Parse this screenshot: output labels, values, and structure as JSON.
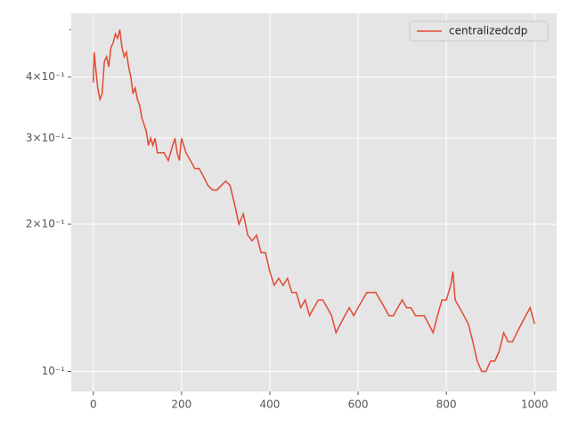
{
  "chart_data": {
    "type": "line",
    "x": [
      0,
      2,
      5,
      10,
      15,
      20,
      25,
      30,
      35,
      40,
      45,
      50,
      55,
      60,
      65,
      70,
      75,
      80,
      85,
      90,
      95,
      100,
      105,
      110,
      115,
      120,
      125,
      130,
      135,
      140,
      145,
      150,
      160,
      170,
      180,
      185,
      190,
      195,
      200,
      205,
      210,
      220,
      230,
      240,
      250,
      260,
      270,
      280,
      290,
      300,
      310,
      320,
      330,
      340,
      350,
      360,
      370,
      380,
      390,
      400,
      410,
      420,
      430,
      440,
      450,
      460,
      470,
      480,
      490,
      500,
      510,
      520,
      530,
      540,
      550,
      560,
      570,
      580,
      590,
      600,
      610,
      620,
      630,
      640,
      650,
      660,
      670,
      680,
      690,
      700,
      710,
      720,
      730,
      740,
      750,
      760,
      770,
      780,
      790,
      800,
      810,
      815,
      820,
      830,
      840,
      850,
      860,
      870,
      880,
      890,
      900,
      910,
      920,
      930,
      940,
      950,
      960,
      970,
      980,
      990,
      1000
    ],
    "series": [
      {
        "name": "centralizedcdp",
        "color": "#E24A33",
        "values": [
          0.39,
          0.45,
          0.42,
          0.38,
          0.36,
          0.37,
          0.43,
          0.44,
          0.42,
          0.46,
          0.47,
          0.49,
          0.48,
          0.5,
          0.46,
          0.44,
          0.45,
          0.42,
          0.4,
          0.37,
          0.38,
          0.36,
          0.35,
          0.33,
          0.32,
          0.31,
          0.29,
          0.3,
          0.29,
          0.3,
          0.28,
          0.28,
          0.28,
          0.27,
          0.29,
          0.3,
          0.28,
          0.27,
          0.3,
          0.29,
          0.28,
          0.27,
          0.26,
          0.26,
          0.25,
          0.24,
          0.235,
          0.235,
          0.24,
          0.245,
          0.24,
          0.22,
          0.2,
          0.21,
          0.19,
          0.185,
          0.19,
          0.175,
          0.175,
          0.16,
          0.15,
          0.155,
          0.15,
          0.155,
          0.145,
          0.145,
          0.135,
          0.14,
          0.13,
          0.135,
          0.14,
          0.14,
          0.135,
          0.13,
          0.12,
          0.125,
          0.13,
          0.135,
          0.13,
          0.135,
          0.14,
          0.145,
          0.145,
          0.145,
          0.14,
          0.135,
          0.13,
          0.13,
          0.135,
          0.14,
          0.135,
          0.135,
          0.13,
          0.13,
          0.13,
          0.125,
          0.12,
          0.13,
          0.14,
          0.14,
          0.15,
          0.16,
          0.14,
          0.135,
          0.13,
          0.125,
          0.115,
          0.105,
          0.1,
          0.1,
          0.105,
          0.105,
          0.11,
          0.12,
          0.115,
          0.115,
          0.12,
          0.125,
          0.13,
          0.135,
          0.125
        ]
      }
    ],
    "xlim": [
      -50,
      1050
    ],
    "xticks": [
      0,
      200,
      400,
      600,
      800,
      1000
    ],
    "ylim": [
      0.091,
      0.54
    ],
    "log_y": true,
    "yticks": [
      {
        "value": 0.1,
        "label": "10⁻¹"
      },
      {
        "value": 0.2,
        "label": "2×10⁻¹"
      },
      {
        "value": 0.3,
        "label": "3×10⁻¹"
      },
      {
        "value": 0.4,
        "label": "4×10⁻¹"
      }
    ],
    "yticks_minor": [
      0.5
    ],
    "grid": true,
    "legend": "upper right"
  }
}
